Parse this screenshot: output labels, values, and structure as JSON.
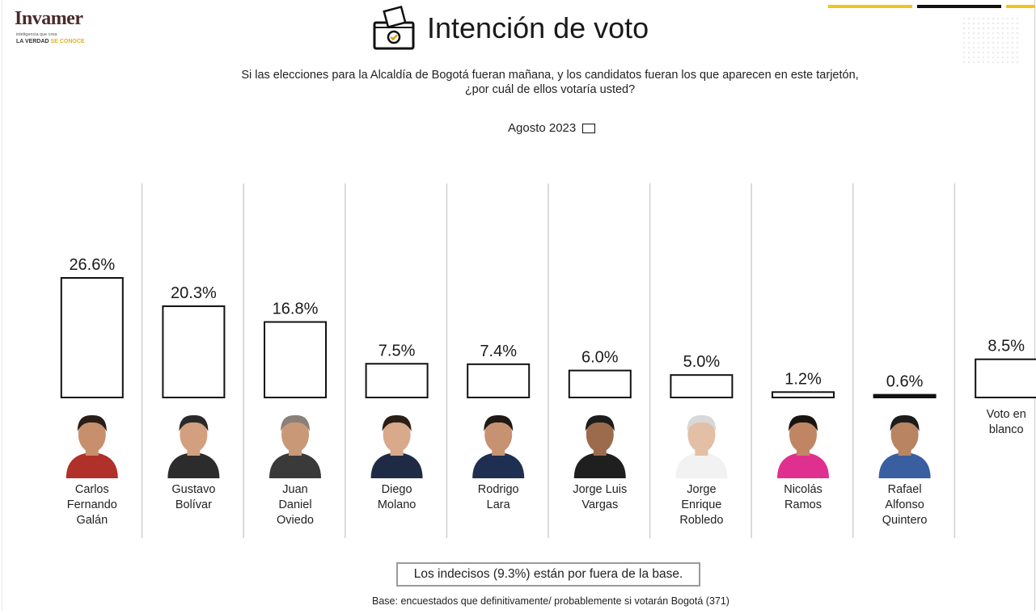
{
  "header": {
    "logo": {
      "name": "Invamer",
      "tagline": "inteligencia que crea",
      "motto_a": "LA VERDAD",
      "motto_b": "SE CONOCE"
    },
    "title": "Intención de voto",
    "icon": "ballot-box-icon",
    "question_line1": "Si las elecciones para la Alcaldía de  Bogotá fueran mañana, y los candidatos fueran los que aparecen en este tarjetón,",
    "question_line2": "¿por cuál de ellos votaría usted?"
  },
  "colors": {
    "bar_fill": "#ffffff",
    "bar_stroke": "#111111",
    "accent_yellow": "#f0c419",
    "divider": "#d0d0d0"
  },
  "chart_data": {
    "type": "bar",
    "title": "Intención de voto",
    "legend": [
      {
        "label": "Agosto 2023",
        "placement": "top-center"
      }
    ],
    "categories": [
      "Carlos Fernando Galán",
      "Gustavo Bolívar",
      "Juan Daniel Oviedo",
      "Diego Molano",
      "Rodrigo Lara",
      "Jorge Luis Vargas",
      "Jorge Enrique Robledo",
      "Nicolás Ramos",
      "Rafael Alfonso Quintero",
      "Voto en blanco"
    ],
    "name_lines": [
      [
        "Carlos",
        "Fernando",
        "Galán"
      ],
      [
        "Gustavo",
        "Bolívar"
      ],
      [
        "Juan",
        "Daniel",
        "Oviedo"
      ],
      [
        "Diego",
        "Molano"
      ],
      [
        "Rodrigo",
        "Lara"
      ],
      [
        "Jorge Luis",
        "Vargas"
      ],
      [
        "Jorge",
        "Enrique",
        "Robledo"
      ],
      [
        "Nicolás",
        "Ramos"
      ],
      [
        "Rafael",
        "Alfonso",
        "Quintero"
      ],
      [
        "Voto en",
        "blanco"
      ]
    ],
    "series": [
      {
        "name": "Agosto 2023",
        "values": [
          26.6,
          20.3,
          16.8,
          7.5,
          7.4,
          6.0,
          5.0,
          1.2,
          0.6,
          8.5
        ],
        "labels": [
          "26.6%",
          "20.3%",
          "16.8%",
          "7.5%",
          "7.4%",
          "6.0%",
          "5.0%",
          "1.2%",
          "0.6%",
          "8.5%"
        ]
      }
    ],
    "ylim": [
      0,
      30
    ],
    "unit": "%",
    "grid": false
  },
  "footer": {
    "note": "Los indecisos (9.3%) están por fuera de la base.",
    "base": "Base: encuestados que definitivamente/ probablemente si votarán  Bogotá (371)"
  }
}
